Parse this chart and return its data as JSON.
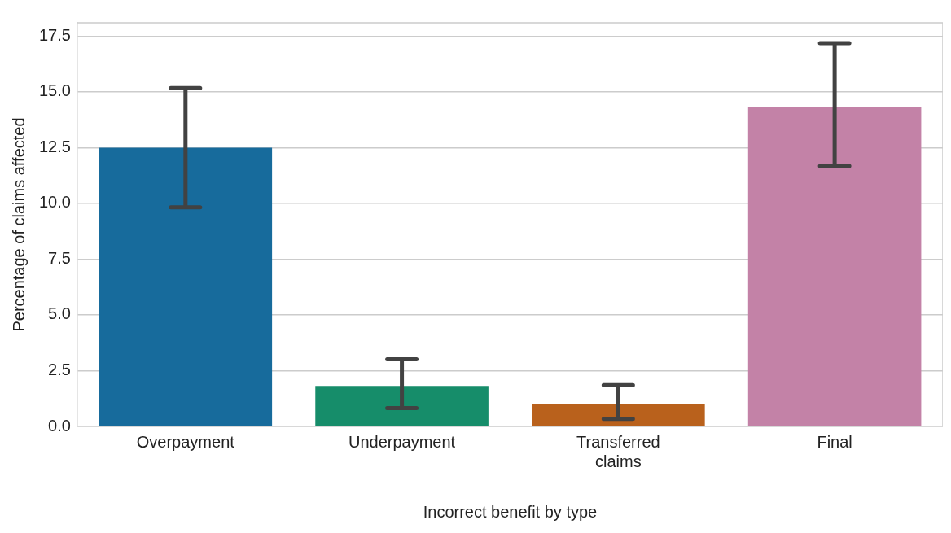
{
  "chart_data": {
    "type": "bar",
    "xlabel": "Incorrect benefit by type",
    "ylabel": "Percentage of claims affected",
    "categories": [
      "Overpayment",
      "Underpayment",
      "Transferred claims",
      "Final"
    ],
    "values": [
      12.5,
      1.82,
      0.99,
      14.32
    ],
    "colors": [
      "#176b9c",
      "#168d6a",
      "#b9611c",
      "#c382a7"
    ],
    "errors": [
      [
        9.83,
        15.17
      ],
      [
        0.82,
        3.01
      ],
      [
        0.34,
        1.85
      ],
      [
        11.68,
        17.19
      ]
    ],
    "ylim": [
      0,
      18.1
    ],
    "yticks": [
      {
        "value": 0,
        "label": "0.0"
      },
      2.5,
      {
        "value": 5,
        "label": "5.0"
      },
      7.5,
      {
        "value": 10,
        "label": "10.0"
      },
      12.5,
      {
        "value": 15,
        "label": "15.0"
      },
      17.5
    ],
    "grid": "y",
    "legend": false
  }
}
